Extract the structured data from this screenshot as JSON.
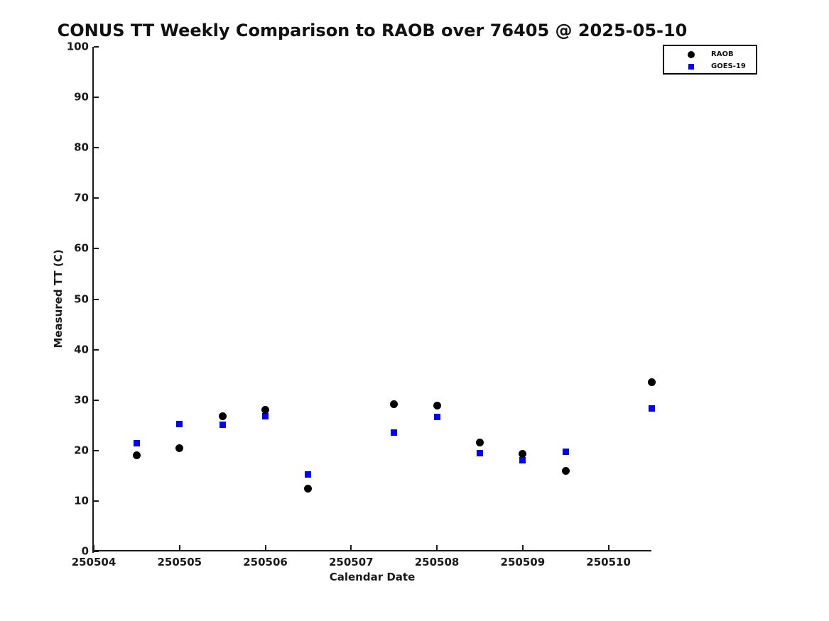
{
  "page": {
    "background": "#ffffff"
  },
  "chart_data": {
    "type": "scatter",
    "title": "CONUS TT Weekly Comparison to RAOB over 76405 @ 2025-05-10",
    "xlabel": "Calendar Date",
    "ylabel": "Measured TT (C)",
    "xlim": [
      250504,
      250510.5
    ],
    "ylim": [
      0,
      100
    ],
    "x_ticks": [
      250504,
      250505,
      250506,
      250507,
      250508,
      250509,
      250510
    ],
    "y_ticks": [
      0,
      10,
      20,
      30,
      40,
      50,
      60,
      70,
      80,
      90,
      100
    ],
    "grid": false,
    "legend_position": "top-right",
    "series": [
      {
        "name": "RAOB",
        "marker": "circle",
        "color": "#000000",
        "points": [
          [
            250504.5,
            19.0
          ],
          [
            250505.0,
            20.5
          ],
          [
            250505.5,
            26.8
          ],
          [
            250506.0,
            28.0
          ],
          [
            250506.5,
            12.5
          ],
          [
            250507.5,
            29.2
          ],
          [
            250508.0,
            28.9
          ],
          [
            250508.5,
            21.6
          ],
          [
            250509.0,
            19.4
          ],
          [
            250509.5,
            16.0
          ],
          [
            250510.5,
            33.5
          ]
        ]
      },
      {
        "name": "GOES-19",
        "marker": "square",
        "color": "#0000ff",
        "points": [
          [
            250504.5,
            21.5
          ],
          [
            250505.0,
            25.2
          ],
          [
            250505.5,
            25.1
          ],
          [
            250506.0,
            26.8
          ],
          [
            250506.5,
            15.2
          ],
          [
            250507.5,
            23.5
          ],
          [
            250508.0,
            26.6
          ],
          [
            250508.5,
            19.5
          ],
          [
            250509.0,
            18.1
          ],
          [
            250509.5,
            19.7
          ],
          [
            250510.5,
            28.3
          ]
        ]
      }
    ]
  }
}
